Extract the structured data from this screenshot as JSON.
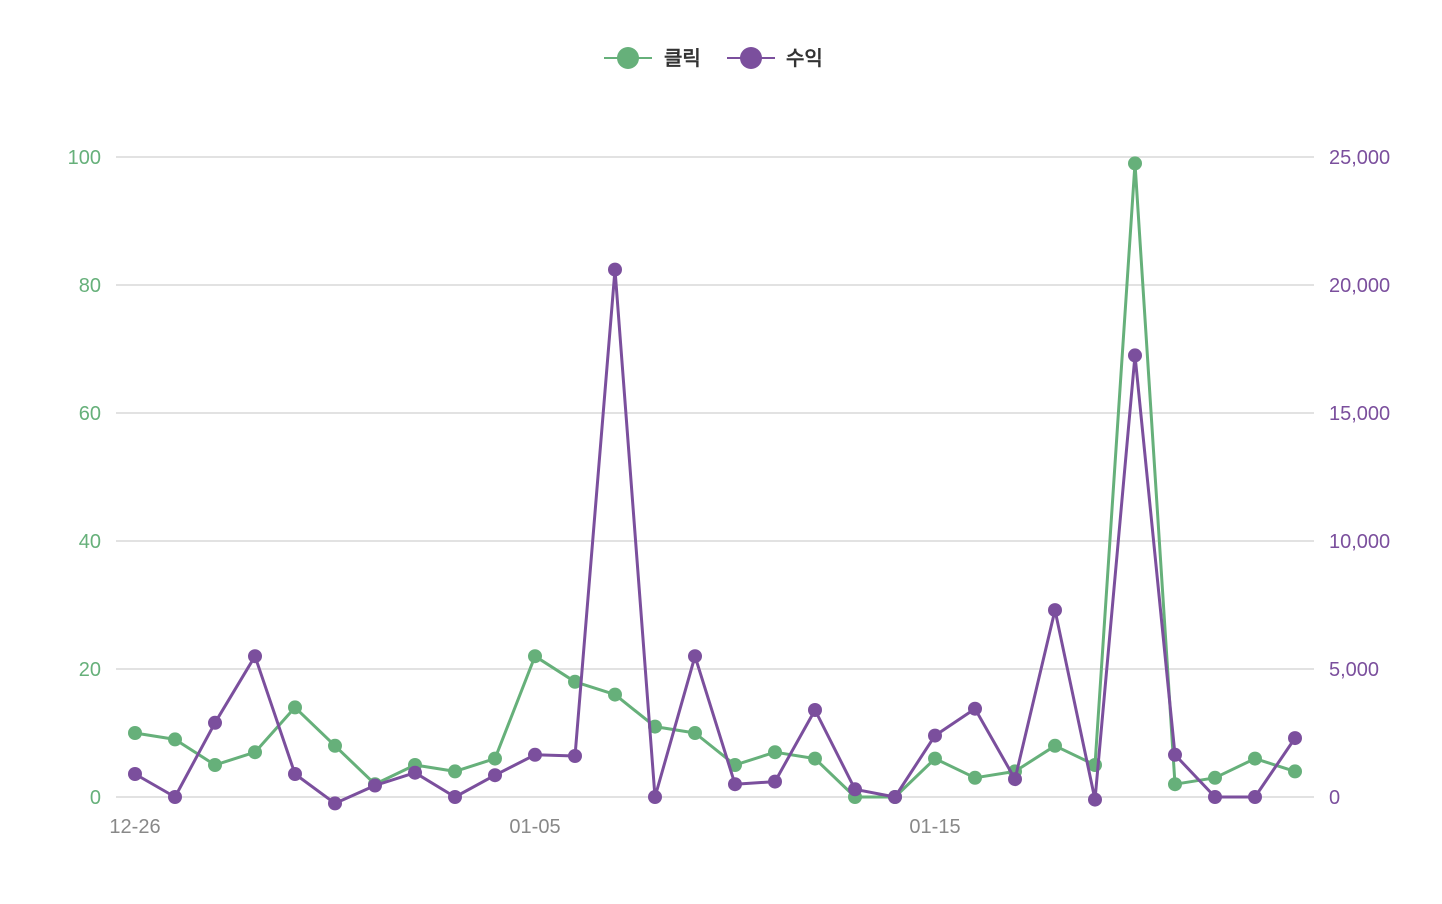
{
  "chart_data": {
    "type": "line",
    "dual_axis": true,
    "x": [
      "12-26",
      "12-27",
      "12-28",
      "12-29",
      "12-30",
      "12-31",
      "01-01",
      "01-02",
      "01-03",
      "01-04",
      "01-05",
      "01-06",
      "01-07",
      "01-08",
      "01-09",
      "01-10",
      "01-11",
      "01-12",
      "01-13",
      "01-14",
      "01-15",
      "01-16",
      "01-17",
      "01-18",
      "01-19",
      "01-20",
      "01-21",
      "01-22",
      "01-23",
      "01-24"
    ],
    "x_tick_labels": [
      "12-26",
      "01-05",
      "01-15"
    ],
    "series": [
      {
        "name": "클릭",
        "axis": "left",
        "color": "#66b07a",
        "values": [
          10,
          9,
          5,
          7,
          14,
          8,
          2,
          5,
          4,
          6,
          22,
          18,
          16,
          11,
          10,
          5,
          7,
          6,
          0,
          0,
          6,
          3,
          4,
          8,
          5,
          99,
          2,
          3,
          6,
          4
        ]
      },
      {
        "name": "수익",
        "axis": "right",
        "color": "#7b4f9d",
        "values": [
          900,
          0,
          2900,
          5500,
          900,
          -250,
          450,
          950,
          0,
          850,
          1650,
          1600,
          20600,
          0,
          5500,
          500,
          600,
          3400,
          300,
          0,
          2400,
          3450,
          700,
          7300,
          -100,
          17250,
          1650,
          0,
          0,
          2300
        ]
      }
    ],
    "left_axis": {
      "ylim": [
        0,
        100
      ],
      "ticks": [
        "0",
        "20",
        "40",
        "60",
        "80",
        "100"
      ],
      "color": "#66b07a"
    },
    "right_axis": {
      "ylim": [
        0,
        25000
      ],
      "ticks": [
        "0",
        "5,000",
        "10,000",
        "15,000",
        "20,000",
        "25,000"
      ],
      "color": "#7b4f9d"
    },
    "grid": true,
    "legend": "top-center",
    "title": "",
    "xlabel": "",
    "ylabel": ""
  }
}
